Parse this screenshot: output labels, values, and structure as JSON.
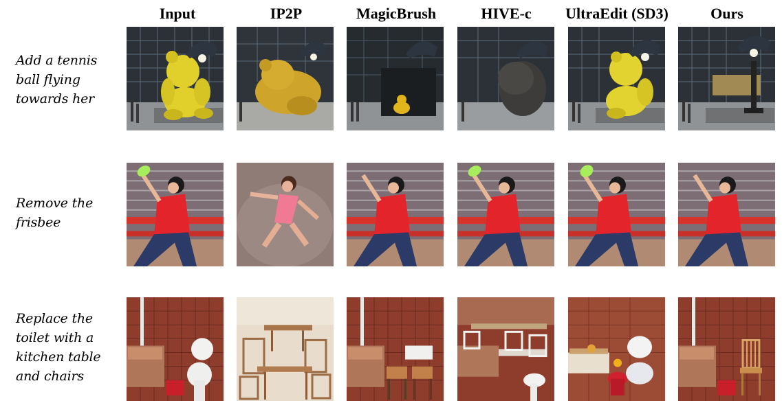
{
  "columns": [
    "Input",
    "IP2P",
    "MagicBrush",
    "HIVE-c",
    "UltraEdit (SD3)",
    "Ours"
  ],
  "rows": [
    {
      "prompt": [
        "Add a tennis",
        "ball flying",
        "towards her"
      ]
    },
    {
      "prompt": [
        "Remove the",
        "frisbee"
      ]
    },
    {
      "prompt": [
        "Replace the",
        "toilet with a",
        "kitchen table",
        "and chairs"
      ]
    }
  ],
  "colors": {
    "building": "#2c3138",
    "bear_yellow": "#e1cf2c",
    "lamp": "#2d3540",
    "shirt_red": "#e3242b",
    "frisbee": "#a8ee5c",
    "tile_red": "#8e3d2c",
    "wood": "#c98d4c"
  }
}
